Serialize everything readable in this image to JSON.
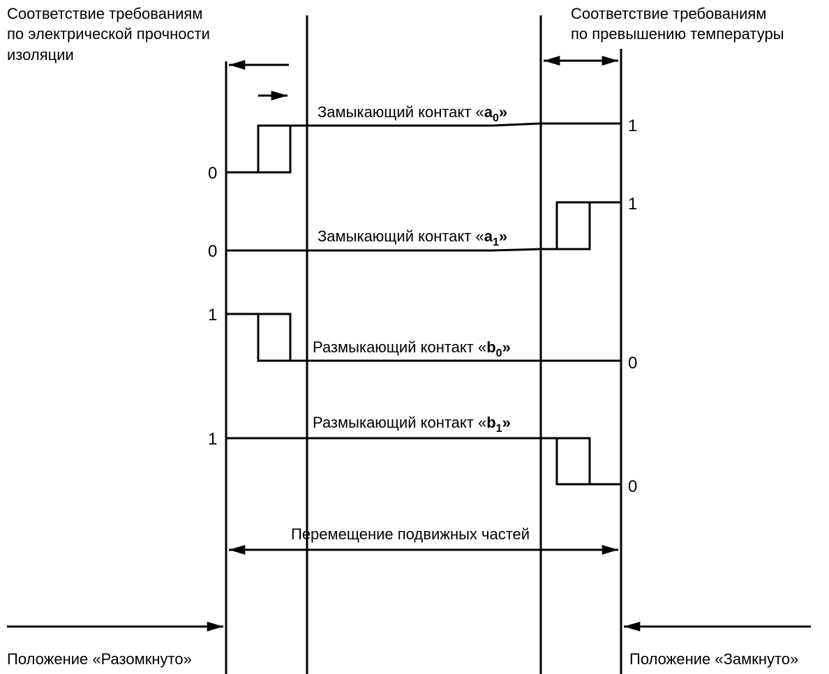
{
  "top_left_note": {
    "line1": "Соответствие требованиям",
    "line2": "по электрической прочности",
    "line3": "изоляции"
  },
  "top_right_note": {
    "line1": "Соответствие требованиям",
    "line2": "по превышению температуры"
  },
  "contacts": [
    {
      "prefix": "Замыкающий контакт «",
      "letter": "a",
      "sub": "0",
      "suffix": "»",
      "left_value": "0",
      "right_value": "1"
    },
    {
      "prefix": "Замыкающий контакт «",
      "letter": "a",
      "sub": "1",
      "suffix": "»",
      "left_value": "0",
      "right_value": "1"
    },
    {
      "prefix": "Размыкающий контакт «",
      "letter": "b",
      "sub": "0",
      "suffix": "»",
      "left_value": "1",
      "right_value": "0"
    },
    {
      "prefix": "Размыкающий контакт «",
      "letter": "b",
      "sub": "1",
      "suffix": "»",
      "left_value": "1",
      "right_value": "0"
    }
  ],
  "travel_label": "Перемещение подвижных частей",
  "position_open": "Положение «Разомкнуто»",
  "position_closed": "Положение «Замкнуто»",
  "colors": {
    "stroke": "#000000",
    "background": "#ffffff"
  }
}
